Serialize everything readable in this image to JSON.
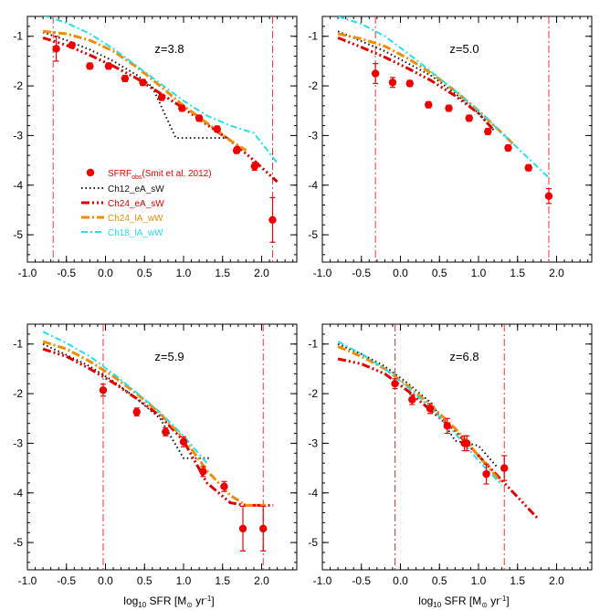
{
  "colors": {
    "obs": "#ee0000",
    "Ch12_eA_sW": "#111111",
    "Ch24_eA_sW": "#dd0000",
    "Ch24_lA_wW": "#f08c00",
    "Ch18_lA_wW": "#22e0f0",
    "vline": "#ee3333"
  },
  "legend": {
    "obs_main": "SFRF",
    "obs_sub": "obs",
    "obs_ref": "(Smit et al. 2012)",
    "items": [
      {
        "key": "Ch12_eA_sW",
        "label": "Ch12_eA_sW"
      },
      {
        "key": "Ch24_eA_sW",
        "label": "Ch24_eA_sW"
      },
      {
        "key": "Ch24_lA_wW",
        "label": "Ch24_lA_wW"
      },
      {
        "key": "Ch18_lA_wW",
        "label": "Ch18_lA_wW"
      }
    ]
  },
  "xtitle": {
    "pre": "log",
    "sub": "10",
    "mid": " SFR [M",
    "sun": "⊙",
    "post": " yr",
    "sup": "-1",
    "end": "]"
  },
  "chart_data": [
    {
      "type": "line",
      "label": "z=3.8",
      "xlim": [
        -1.0,
        2.45
      ],
      "ylim": [
        -5.55,
        -0.6
      ],
      "xticks": [
        "-1.0",
        "-0.5",
        "0.0",
        "0.5",
        "1.0",
        "1.5",
        "2.0"
      ],
      "yticks": [
        "-1",
        "-2",
        "-3",
        "-4",
        "-5"
      ],
      "vlines": [
        -0.67,
        2.14
      ],
      "series": [
        {
          "key": "Ch12_eA_sW",
          "x": [
            -0.8,
            -0.5,
            -0.2,
            0.1,
            0.4,
            0.6,
            0.9,
            1.2,
            1.6
          ],
          "y": [
            -0.92,
            -1.08,
            -1.27,
            -1.5,
            -1.78,
            -2.02,
            -3.05,
            -3.05,
            -3.05
          ]
        },
        {
          "key": "Ch24_eA_sW",
          "x": [
            -0.8,
            -0.5,
            -0.2,
            0.1,
            0.4,
            0.7,
            1.0,
            1.3,
            1.6,
            1.9,
            2.2
          ],
          "y": [
            -1.03,
            -1.18,
            -1.38,
            -1.6,
            -1.85,
            -2.15,
            -2.45,
            -2.78,
            -3.1,
            -3.5,
            -3.93
          ]
        },
        {
          "key": "Ch24_lA_wW",
          "x": [
            -0.8,
            -0.5,
            -0.2,
            0.1,
            0.4,
            0.7,
            1.0,
            1.3,
            1.6,
            1.8
          ],
          "y": [
            -0.9,
            -0.95,
            -1.08,
            -1.3,
            -1.62,
            -2.0,
            -2.4,
            -2.75,
            -3.1,
            -3.3
          ]
        },
        {
          "key": "Ch18_lA_wW",
          "x": [
            -0.8,
            -0.5,
            -0.2,
            0.1,
            0.4,
            0.7,
            1.0,
            1.3,
            1.6,
            1.9,
            2.2
          ],
          "y": [
            -0.58,
            -0.73,
            -0.95,
            -1.25,
            -1.6,
            -1.95,
            -2.3,
            -2.6,
            -2.8,
            -2.95,
            -3.55
          ]
        }
      ],
      "obs": {
        "x": [
          -0.63,
          -0.43,
          -0.2,
          0.04,
          0.25,
          0.48,
          0.72,
          0.98,
          1.2,
          1.43,
          1.68,
          1.91,
          2.14
        ],
        "y": [
          -1.25,
          -1.18,
          -1.6,
          -1.6,
          -1.85,
          -1.93,
          -2.23,
          -2.45,
          -2.65,
          -2.87,
          -3.3,
          -3.62,
          -4.7
        ],
        "err": [
          0.25,
          0.05,
          0.06,
          0.06,
          0.06,
          0.06,
          0.06,
          0.06,
          0.06,
          0.06,
          0.06,
          0.08,
          0.45
        ]
      }
    },
    {
      "type": "line",
      "label": "z=5.0",
      "xlim": [
        -1.0,
        2.45
      ],
      "ylim": [
        -5.55,
        -0.6
      ],
      "xticks": [
        "-1.0",
        "-0.5",
        "0.0",
        "0.5",
        "1.0",
        "1.5",
        "2.0"
      ],
      "yticks": [
        "-1",
        "-2",
        "-3",
        "-4",
        "-5"
      ],
      "vlines": [
        -0.32,
        1.9
      ],
      "series": [
        {
          "key": "Ch12_eA_sW",
          "x": [
            -0.8,
            -0.5,
            -0.2,
            0.1,
            0.4,
            0.7,
            1.0,
            1.2
          ],
          "y": [
            -0.9,
            -1.1,
            -1.3,
            -1.55,
            -1.8,
            -2.15,
            -2.55,
            -2.9
          ]
        },
        {
          "key": "Ch24_eA_sW",
          "x": [
            -0.8,
            -0.5,
            -0.2,
            0.1,
            0.4,
            0.7,
            1.0,
            1.2
          ],
          "y": [
            -1.03,
            -1.22,
            -1.42,
            -1.65,
            -1.9,
            -2.2,
            -2.55,
            -2.9
          ]
        },
        {
          "key": "Ch24_lA_wW",
          "x": [
            -0.8,
            -0.5,
            -0.2,
            0.1,
            0.4,
            0.7,
            1.0,
            1.3,
            1.45
          ],
          "y": [
            -0.95,
            -1.05,
            -1.2,
            -1.45,
            -1.75,
            -2.1,
            -2.5,
            -2.95,
            -3.18
          ]
        },
        {
          "key": "Ch18_lA_wW",
          "x": [
            -0.8,
            -0.5,
            -0.2,
            0.1,
            0.4,
            0.7,
            1.0,
            1.3,
            1.6,
            1.9
          ],
          "y": [
            -0.6,
            -0.75,
            -1.0,
            -1.35,
            -1.72,
            -2.1,
            -2.5,
            -2.95,
            -3.4,
            -3.85
          ]
        }
      ],
      "obs": {
        "x": [
          -0.32,
          -0.1,
          0.12,
          0.36,
          0.62,
          0.88,
          1.12,
          1.38,
          1.64,
          1.9
        ],
        "y": [
          -1.75,
          -1.93,
          -1.95,
          -2.38,
          -2.45,
          -2.65,
          -2.92,
          -3.25,
          -3.65,
          -4.22
        ],
        "err": [
          0.2,
          0.1,
          0.06,
          0.06,
          0.06,
          0.06,
          0.06,
          0.06,
          0.06,
          0.15
        ]
      }
    },
    {
      "type": "line",
      "label": "z=5.9",
      "xlim": [
        -1.0,
        2.45
      ],
      "ylim": [
        -5.55,
        -0.6
      ],
      "xticks": [
        "-1.0",
        "-0.5",
        "0.0",
        "0.5",
        "1.0",
        "1.5",
        "2.0"
      ],
      "yticks": [
        "-1",
        "-2",
        "-3",
        "-4",
        "-5"
      ],
      "vlines": [
        -0.03,
        2.02
      ],
      "series": [
        {
          "key": "Ch12_eA_sW",
          "x": [
            -0.8,
            -0.5,
            -0.2,
            0.1,
            0.4,
            0.7,
            1.0,
            1.35
          ],
          "y": [
            -1.0,
            -1.22,
            -1.45,
            -1.75,
            -2.1,
            -2.5,
            -3.3,
            -3.3
          ]
        },
        {
          "key": "Ch24_eA_sW",
          "x": [
            -0.8,
            -0.5,
            -0.2,
            0.1,
            0.4,
            0.7,
            1.0,
            1.3,
            1.6,
            1.8,
            2.15
          ],
          "y": [
            -1.1,
            -1.25,
            -1.5,
            -1.78,
            -2.1,
            -2.45,
            -2.95,
            -3.8,
            -4.2,
            -4.25,
            -4.25
          ]
        },
        {
          "key": "Ch24_lA_wW",
          "x": [
            -0.8,
            -0.5,
            -0.2,
            0.1,
            0.4,
            0.7,
            1.0,
            1.3,
            1.6,
            1.8,
            2.05
          ],
          "y": [
            -0.95,
            -1.1,
            -1.35,
            -1.65,
            -2.0,
            -2.4,
            -2.9,
            -3.55,
            -4.05,
            -4.25,
            -4.25
          ]
        },
        {
          "key": "Ch18_lA_wW",
          "x": [
            -0.8,
            -0.5,
            -0.2,
            0.1,
            0.4,
            0.7,
            1.0,
            1.3
          ],
          "y": [
            -0.75,
            -0.98,
            -1.25,
            -1.6,
            -1.98,
            -2.38,
            -2.85,
            -3.4
          ]
        }
      ],
      "obs": {
        "x": [
          -0.03,
          0.4,
          0.77,
          1.0,
          1.25,
          1.52,
          1.76,
          2.02
        ],
        "y": [
          -1.93,
          -2.37,
          -2.77,
          -2.97,
          -3.57,
          -3.87,
          -4.72,
          -4.72
        ],
        "err": [
          0.12,
          0.08,
          0.08,
          0.1,
          0.1,
          0.1,
          0.45,
          0.45
        ]
      }
    },
    {
      "type": "line",
      "label": "z=6.8",
      "xlim": [
        -1.0,
        2.45
      ],
      "ylim": [
        -5.55,
        -0.6
      ],
      "xticks": [
        "-1.0",
        "-0.5",
        "0.0",
        "0.5",
        "1.0",
        "1.5",
        "2.0"
      ],
      "yticks": [
        "-1",
        "-2",
        "-3",
        "-4",
        "-5"
      ],
      "vlines": [
        -0.07,
        1.33
      ],
      "series": [
        {
          "key": "Ch12_eA_sW",
          "x": [
            -0.8,
            -0.5,
            -0.2,
            0.1,
            0.4,
            0.7,
            1.0,
            1.25
          ],
          "y": [
            -1.0,
            -1.2,
            -1.45,
            -1.8,
            -2.2,
            -2.95,
            -3.05,
            -3.5
          ]
        },
        {
          "key": "Ch24_eA_sW",
          "x": [
            -0.8,
            -0.5,
            -0.2,
            0.1,
            0.4,
            0.7,
            1.0,
            1.3,
            1.6,
            1.75
          ],
          "y": [
            -1.3,
            -1.4,
            -1.6,
            -1.95,
            -2.35,
            -2.75,
            -3.25,
            -3.75,
            -4.25,
            -4.5
          ]
        },
        {
          "key": "Ch24_lA_wW",
          "x": [
            -0.8,
            -0.5,
            -0.2,
            0.1,
            0.4,
            0.7,
            1.0,
            1.3
          ],
          "y": [
            -1.05,
            -1.25,
            -1.5,
            -1.85,
            -2.25,
            -2.7,
            -3.25,
            -3.8
          ]
        },
        {
          "key": "Ch18_lA_wW",
          "x": [
            -0.8,
            -0.5,
            -0.2,
            0.1,
            0.4,
            0.7,
            1.0,
            1.3
          ],
          "y": [
            -0.95,
            -1.2,
            -1.5,
            -1.88,
            -2.3,
            -2.8,
            -3.35,
            -3.85
          ]
        }
      ],
      "obs": {
        "x": [
          -0.07,
          0.15,
          0.38,
          0.6,
          0.82,
          0.85,
          1.1,
          1.33
        ],
        "y": [
          -1.8,
          -2.12,
          -2.3,
          -2.65,
          -3.0,
          -3.0,
          -3.62,
          -3.5
        ],
        "err": [
          0.1,
          0.1,
          0.1,
          0.15,
          0.15,
          0.15,
          0.2,
          0.25
        ]
      }
    }
  ]
}
